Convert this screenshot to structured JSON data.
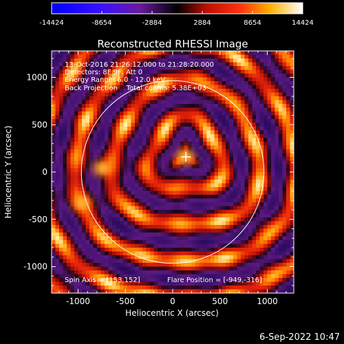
{
  "chart_data": {
    "type": "heatmap",
    "title": "Reconstructed RHESSI Image",
    "xlabel": "Heliocentric X (arcsec)",
    "ylabel": "Heliocentric Y (arcsec)",
    "xlim": [
      -1280,
      1280
    ],
    "ylim": [
      -1280,
      1280
    ],
    "xticks": [
      -1000,
      -500,
      0,
      500,
      1000
    ],
    "yticks": [
      -1000,
      -500,
      0,
      500,
      1000
    ],
    "colorbar": {
      "ticks": [
        -14424,
        -8654,
        -2884,
        2884,
        8654,
        14424
      ],
      "tick_labels": [
        "-14424",
        "-8654",
        "-2884",
        "2884",
        "8654",
        "14424"
      ],
      "range": [
        -14424,
        14424
      ],
      "colormap": "blue-purple-black-red-yellow-white"
    },
    "solar_disk_radius_arcsec": 965,
    "solar_disk_center": [
      0,
      0
    ],
    "source_position": [
      140,
      160
    ],
    "hot_spots": [
      {
        "x": -740,
        "y": 40,
        "level": "high"
      },
      {
        "x": -960,
        "y": -330,
        "level": "high"
      },
      {
        "x": 130,
        "y": 160,
        "level": "high"
      }
    ],
    "info_lines": [
      "13-Oct-2016 21:26:12.000 to 21:28:20.000",
      "Detectors: 8F 9F, Att 0",
      "Energy Range: 6.0 - 12.0 keV",
      "Back Projection    Total counts: 5.38E+03"
    ],
    "footer": {
      "spin_axis": "Spin Axis = [153,152]",
      "flare_position": "Flare Position = [-949,-316]"
    },
    "date_stamp": "6-Sep-2022 10:47"
  }
}
